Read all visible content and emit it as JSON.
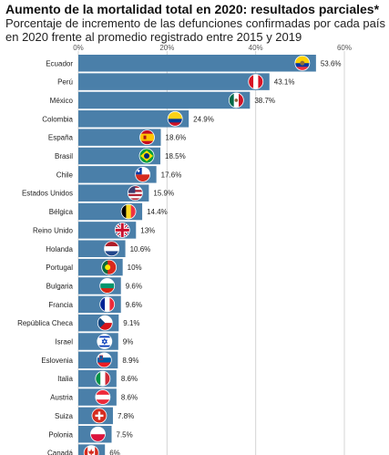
{
  "chart_data": {
    "type": "bar",
    "orientation": "horizontal",
    "title": "Aumento de la mortalidad total en 2020: resultados parciales*",
    "subtitle": "Porcentaje de incremento de las defunciones confirmadas por cada país en 2020 frente al promedio registrado entre 2015 y 2019",
    "xlim": [
      0,
      60
    ],
    "x_ticks": [
      "0%",
      "20%",
      "40%",
      "60%"
    ],
    "x_tick_values": [
      0,
      20,
      40,
      60
    ],
    "grid": true,
    "bar_color": "#4a7fa9",
    "categories": [
      "Ecuador",
      "Perú",
      "México",
      "Colombia",
      "España",
      "Brasil",
      "Chile",
      "Estados Unidos",
      "Bélgica",
      "Reino Unido",
      "Holanda",
      "Portugal",
      "Bulgaria",
      "Francia",
      "República Checa",
      "Israel",
      "Eslovenia",
      "Italia",
      "Austria",
      "Suiza",
      "Polonia",
      "Canadá"
    ],
    "values": [
      53.6,
      43.1,
      38.7,
      24.9,
      18.6,
      18.5,
      17.6,
      15.9,
      14.4,
      13,
      10.6,
      10,
      9.6,
      9.6,
      9.1,
      9,
      8.9,
      8.6,
      8.6,
      7.8,
      7.5,
      6
    ],
    "labels": [
      "53.6%",
      "43.1%",
      "38.7%",
      "24.9%",
      "18.6%",
      "18.5%",
      "17.6%",
      "15.9%",
      "14.4%",
      "13%",
      "10.6%",
      "10%",
      "9.6%",
      "9.6%",
      "9.1%",
      "9%",
      "8.9%",
      "8.6%",
      "8.6%",
      "7.8%",
      "7.5%",
      "6%"
    ],
    "flag_icons": [
      "ecuador-flag-icon",
      "peru-flag-icon",
      "mexico-flag-icon",
      "colombia-flag-icon",
      "spain-flag-icon",
      "brazil-flag-icon",
      "chile-flag-icon",
      "usa-flag-icon",
      "belgium-flag-icon",
      "uk-flag-icon",
      "netherlands-flag-icon",
      "portugal-flag-icon",
      "bulgaria-flag-icon",
      "france-flag-icon",
      "czech-flag-icon",
      "israel-flag-icon",
      "slovenia-flag-icon",
      "italy-flag-icon",
      "austria-flag-icon",
      "switzerland-flag-icon",
      "poland-flag-icon",
      "canada-flag-icon"
    ]
  }
}
